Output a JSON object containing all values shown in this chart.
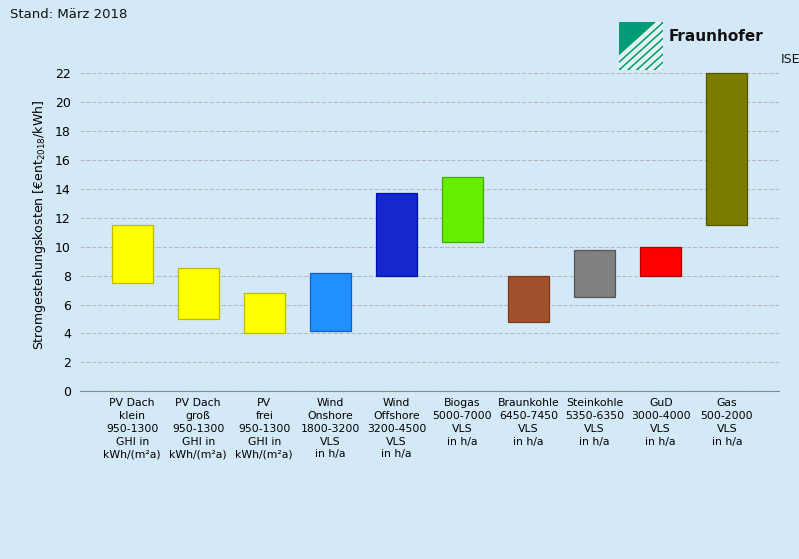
{
  "categories": [
    "PV Dach\nklein\n950-1300\nGHI in\nkWh/(m²a)",
    "PV Dach\ngroß\n950-1300\nGHI in\nkWh/(m²a)",
    "PV\nfrei\n950-1300\nGHI in\nkWh/(m²a)",
    "Wind\nOnshore\n1800-3200\nVLS\nin h/a",
    "Wind\nOffshore\n3200-4500\nVLS\nin h/a",
    "Biogas\n5000-7000\nVLS\nin h/a",
    "Braunkohle\n6450-7450\nVLS\nin h/a",
    "Steinkohle\n5350-6350\nVLS\nin h/a",
    "GuD\n3000-4000\nVLS\nin h/a",
    "Gas\n500-2000\nVLS\nin h/a"
  ],
  "bar_bottoms": [
    7.5,
    5.0,
    4.0,
    4.2,
    8.0,
    10.3,
    4.8,
    6.5,
    8.0,
    11.5
  ],
  "bar_tops": [
    11.5,
    8.5,
    6.8,
    8.2,
    13.7,
    14.8,
    8.0,
    9.8,
    10.0,
    22.0
  ],
  "bar_colors": [
    "#FFFF00",
    "#FFFF00",
    "#FFFF00",
    "#2090FF",
    "#1428CC",
    "#66EE00",
    "#A0522D",
    "#808080",
    "#FF0000",
    "#7B7B00"
  ],
  "bar_edge_colors": [
    "#BBBB00",
    "#BBBB00",
    "#BBBB00",
    "#1060CC",
    "#0010AA",
    "#44AA00",
    "#7A3A1A",
    "#555555",
    "#AA0000",
    "#555500"
  ],
  "ylabel": "€ent₂₀₁₈/kWh",
  "ylabel_prefix": "Stromgestehungskosten [",
  "ylabel_suffix": "/kWh]",
  "ylim": [
    0,
    23
  ],
  "yticks": [
    0,
    2,
    4,
    6,
    8,
    10,
    12,
    14,
    16,
    18,
    20,
    22
  ],
  "background_color": "#D4E9F7",
  "grid_color": "#AAAAAA",
  "title_text": "Stand: März 2018",
  "fraunhofer_green": "#009B77",
  "fraunhofer_text": "Fraunhofer",
  "fraunhofer_sub": "ISE"
}
